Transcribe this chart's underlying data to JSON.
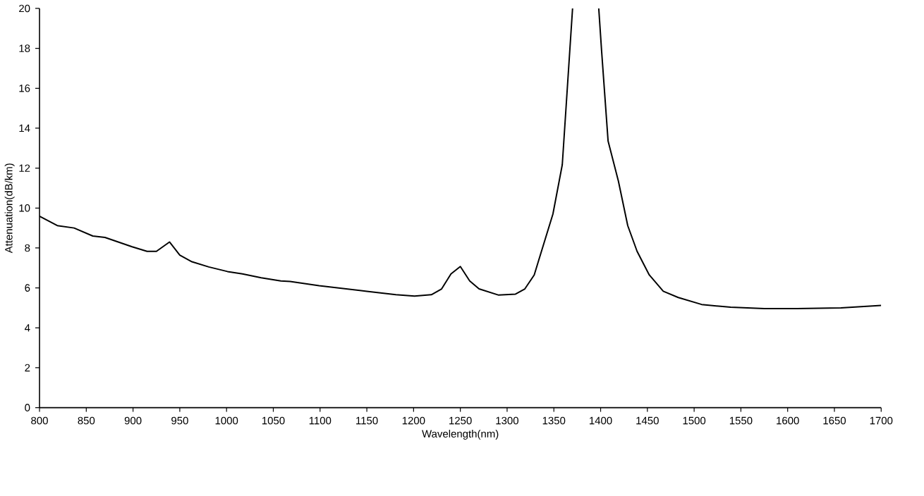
{
  "chart_data": {
    "type": "line",
    "xlabel": "Wavelength(nm)",
    "ylabel": "Attenuation(dB/km)",
    "xlim": [
      800,
      1700
    ],
    "ylim": [
      0,
      20
    ],
    "xticks": [
      800,
      850,
      900,
      950,
      1000,
      1050,
      1100,
      1150,
      1200,
      1250,
      1300,
      1350,
      1400,
      1450,
      1500,
      1550,
      1600,
      1650,
      1700
    ],
    "yticks": [
      0,
      2,
      4,
      6,
      8,
      10,
      12,
      14,
      16,
      18,
      20
    ],
    "series": [
      {
        "color": "#000000",
        "x": [
          800,
          819,
          837,
          857,
          870,
          899,
          915,
          925,
          939,
          950,
          963,
          981,
          1001,
          1017,
          1037,
          1058,
          1068,
          1099,
          1150,
          1181,
          1201,
          1219,
          1230,
          1240,
          1250,
          1260,
          1270,
          1291,
          1309,
          1319,
          1329,
          1349,
          1359,
          1370,
          1384,
          1398,
          1401,
          1408,
          1419,
          1429,
          1439,
          1452,
          1467,
          1483,
          1508,
          1539,
          1575,
          1610,
          1657,
          1700
        ],
        "values": [
          9.59,
          9.12,
          9.0,
          8.6,
          8.53,
          8.06,
          7.83,
          7.83,
          8.3,
          7.64,
          7.31,
          7.05,
          6.82,
          6.7,
          6.51,
          6.35,
          6.32,
          6.11,
          5.83,
          5.66,
          5.59,
          5.66,
          5.95,
          6.7,
          7.07,
          6.35,
          5.95,
          5.64,
          5.69,
          5.95,
          6.65,
          9.7,
          12.17,
          20,
          null,
          20,
          17.9,
          13.35,
          11.35,
          9.12,
          7.83,
          6.65,
          5.83,
          5.52,
          5.17,
          5.03,
          4.96,
          4.96,
          5.0,
          5.12
        ]
      }
    ]
  }
}
